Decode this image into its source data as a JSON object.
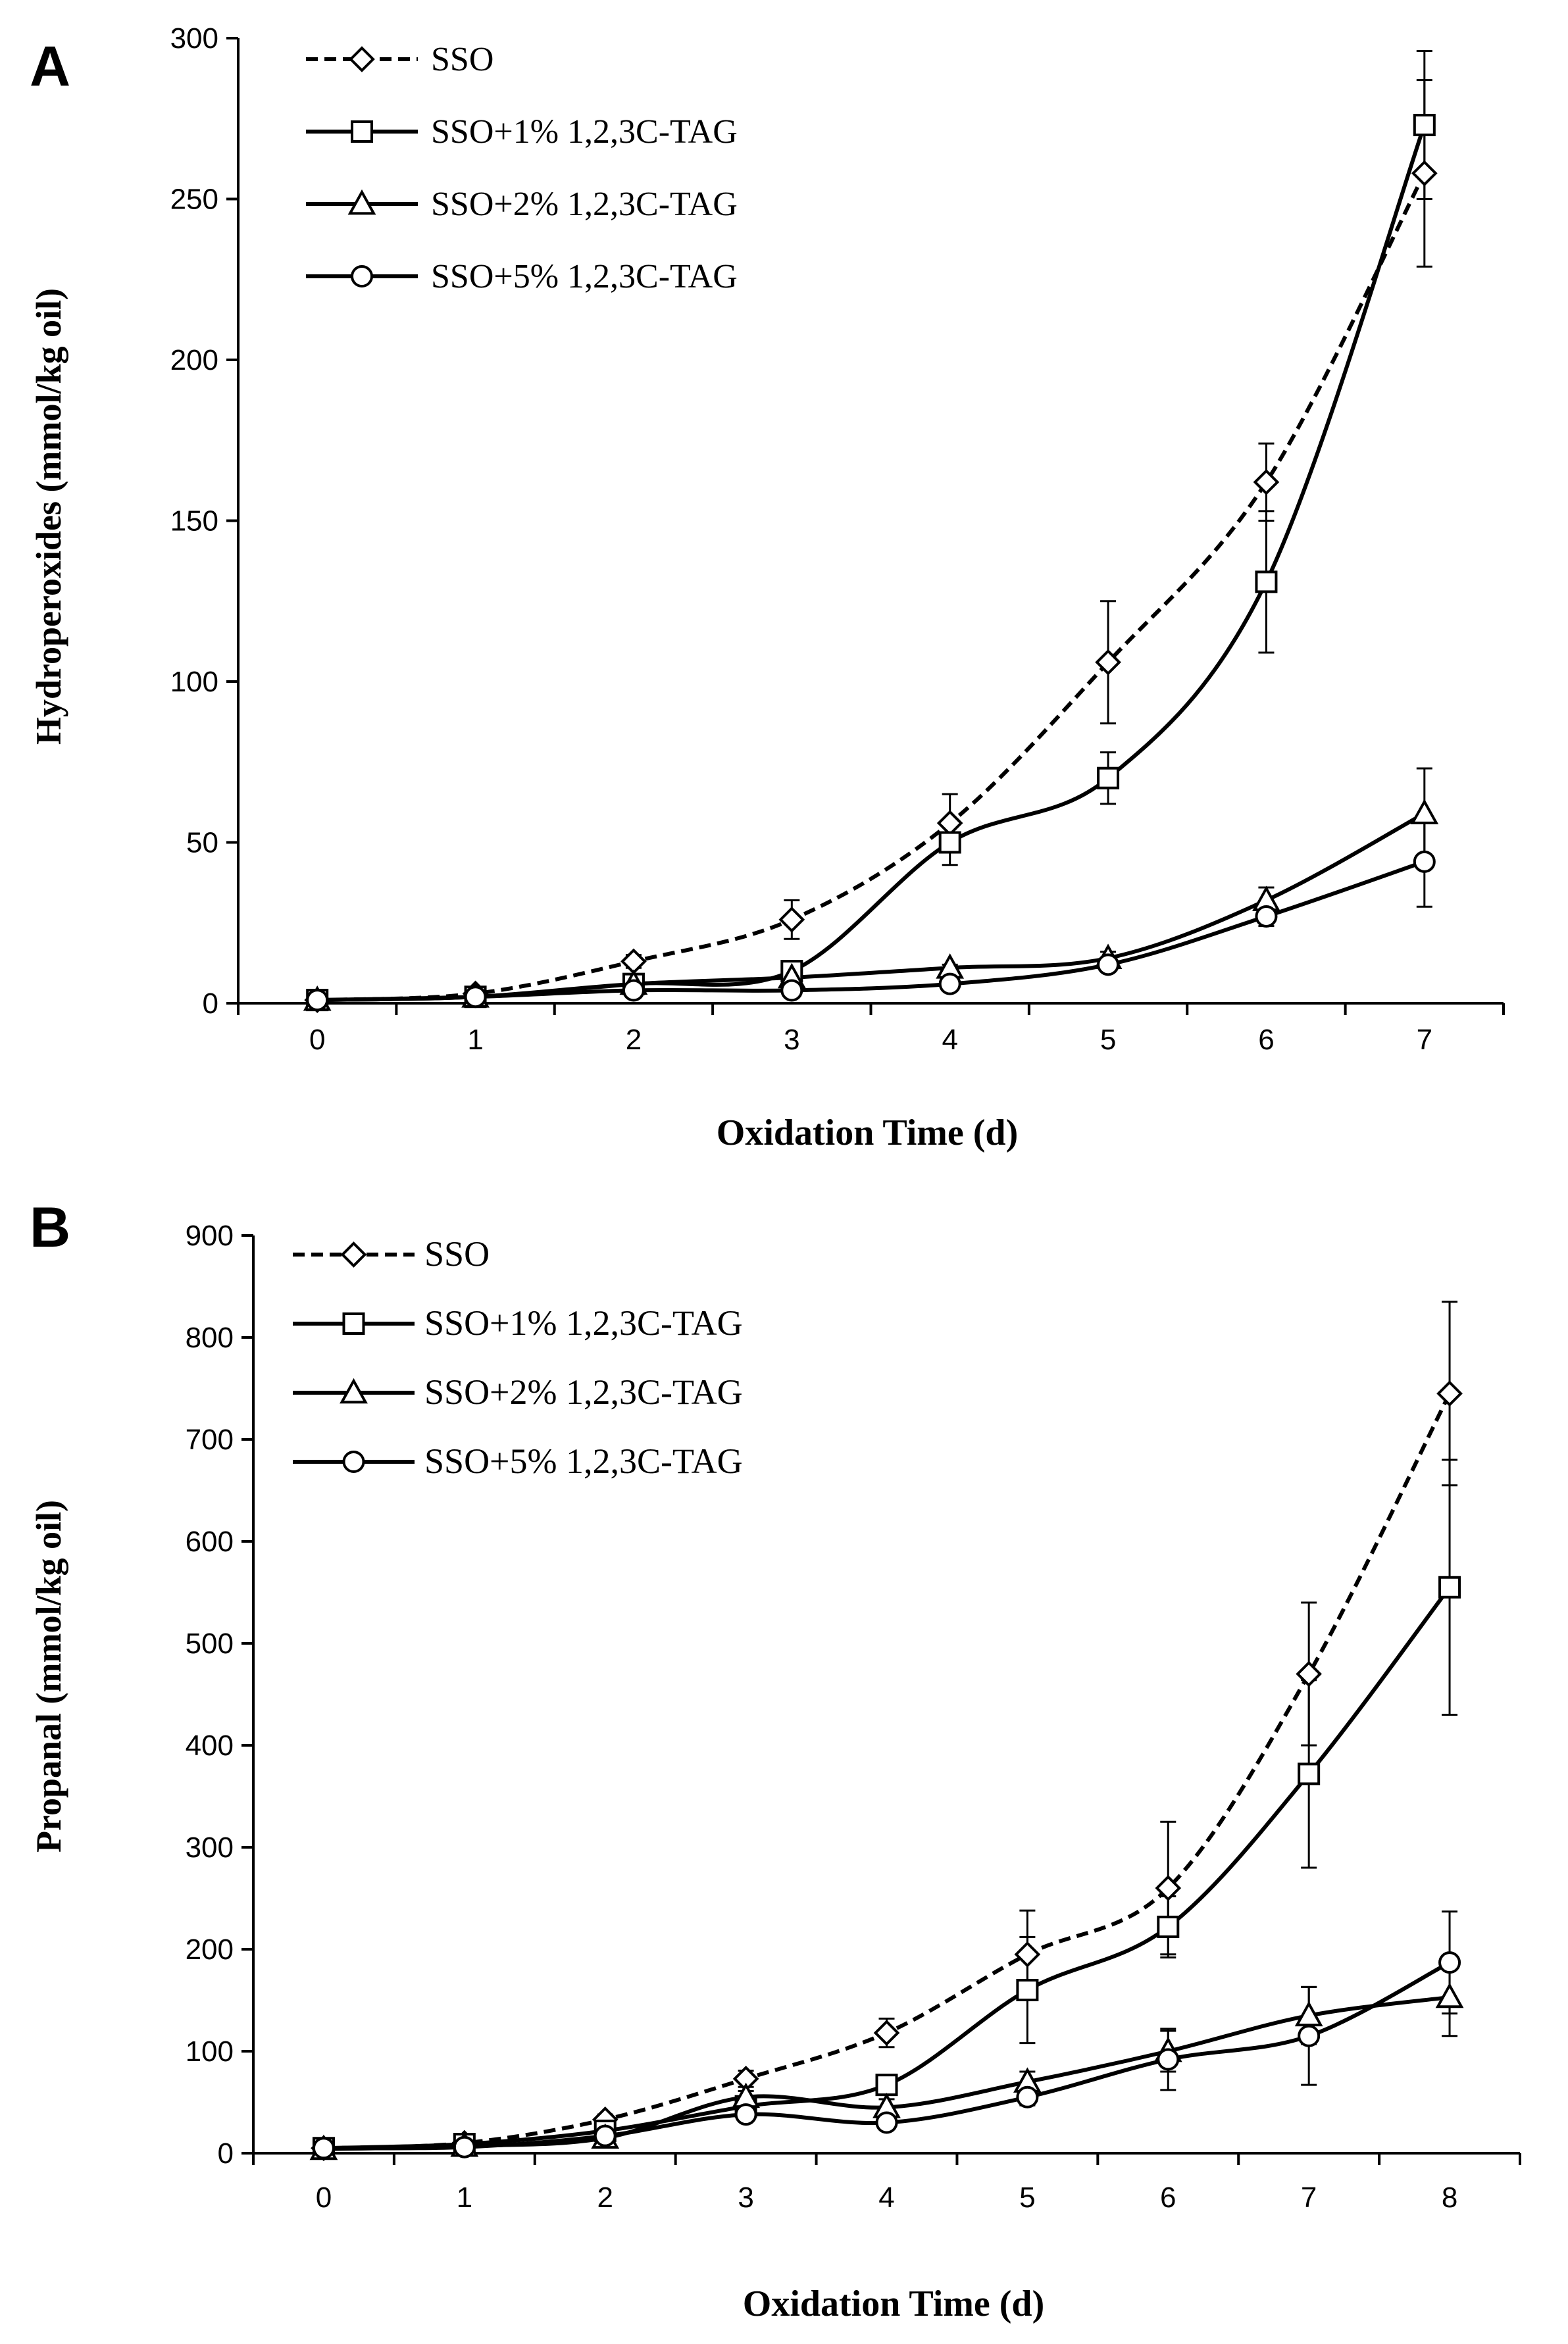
{
  "chart_data": [
    {
      "panel_label": "A",
      "type": "line",
      "title": "",
      "xlabel": "Oxidation Time (d)",
      "ylabel": "Hydroperoxides (mmol/kg oil)",
      "x": [
        0,
        1,
        2,
        3,
        4,
        5,
        6,
        7
      ],
      "xticks": [
        "0",
        "1",
        "2",
        "3",
        "4",
        "5",
        "6",
        "7"
      ],
      "ylim": [
        0,
        300
      ],
      "yticks": [
        "0",
        "50",
        "100",
        "150",
        "200",
        "250",
        "300"
      ],
      "grid": false,
      "legend_position": "top-left",
      "series": [
        {
          "name": "SSO",
          "marker": "diamond",
          "line": "dashed",
          "values": [
            1,
            3,
            13,
            26,
            56,
            106,
            162,
            258
          ],
          "errors": [
            0,
            1,
            2,
            6,
            9,
            19,
            12,
            29
          ]
        },
        {
          "name": "SSO+1% 1,2,3C-TAG",
          "marker": "square",
          "line": "solid",
          "values": [
            1,
            2,
            6,
            10,
            50,
            70,
            131,
            273
          ],
          "errors": [
            0,
            1,
            1,
            2,
            7,
            8,
            22,
            23
          ]
        },
        {
          "name": "SSO+2% 1,2,3C-TAG",
          "marker": "triangle",
          "line": "solid",
          "values": [
            1,
            2,
            6,
            8,
            11,
            14,
            32,
            59
          ],
          "errors": [
            0,
            0,
            1,
            1,
            1,
            2,
            4,
            14
          ]
        },
        {
          "name": "SSO+5% 1,2,3C-TAG",
          "marker": "circle",
          "line": "solid",
          "values": [
            1,
            2,
            4,
            4,
            6,
            12,
            27,
            44
          ],
          "errors": [
            0,
            0,
            1,
            1,
            2,
            2,
            3,
            14
          ]
        }
      ]
    },
    {
      "panel_label": "B",
      "type": "line",
      "title": "",
      "xlabel": "Oxidation Time (d)",
      "ylabel": "Propanal (mmol/kg oil)",
      "x": [
        0,
        1,
        2,
        3,
        4,
        5,
        6,
        7,
        8
      ],
      "xticks": [
        "0",
        "1",
        "2",
        "3",
        "4",
        "5",
        "6",
        "7",
        "8"
      ],
      "ylim": [
        0,
        900
      ],
      "yticks": [
        "0",
        "100",
        "200",
        "300",
        "400",
        "500",
        "600",
        "700",
        "800",
        "900"
      ],
      "grid": false,
      "legend_position": "top-left",
      "series": [
        {
          "name": "SSO",
          "marker": "diamond",
          "line": "dashed",
          "values": [
            5,
            10,
            33,
            73,
            118,
            195,
            260,
            470,
            745
          ],
          "errors": [
            0,
            2,
            5,
            8,
            14,
            43,
            65,
            70,
            90
          ]
        },
        {
          "name": "SSO+1% 1,2,3C-TAG",
          "marker": "square",
          "line": "solid",
          "values": [
            5,
            9,
            22,
            46,
            67,
            160,
            222,
            372,
            555
          ],
          "errors": [
            0,
            2,
            5,
            6,
            8,
            52,
            30,
            92,
            125
          ]
        },
        {
          "name": "SSO+2% 1,2,3C-TAG",
          "marker": "triangle",
          "line": "solid",
          "values": [
            4,
            7,
            15,
            55,
            45,
            70,
            100,
            135,
            153
          ],
          "errors": [
            0,
            2,
            4,
            6,
            8,
            10,
            20,
            28,
            38
          ]
        },
        {
          "name": "SSO+5% 1,2,3C-TAG",
          "marker": "circle",
          "line": "solid",
          "values": [
            5,
            6,
            17,
            38,
            30,
            55,
            92,
            115,
            187
          ],
          "errors": [
            0,
            2,
            4,
            5,
            6,
            8,
            30,
            48,
            50
          ]
        }
      ]
    }
  ]
}
